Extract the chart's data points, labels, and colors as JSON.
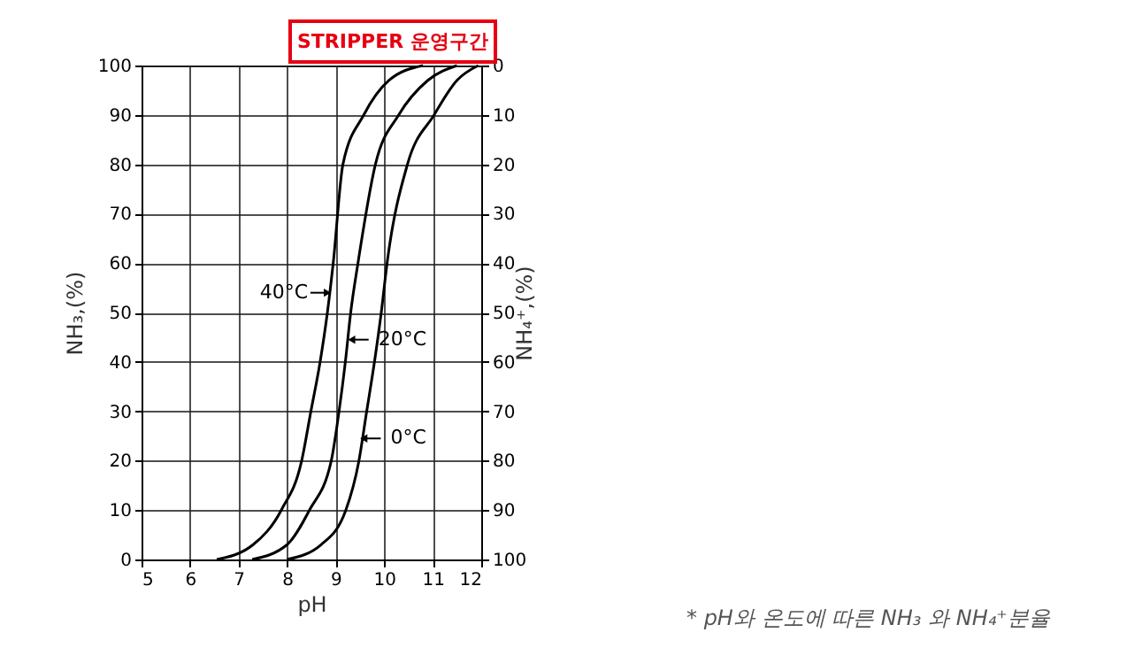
{
  "chart_data": {
    "type": "line",
    "xlabel": "pH",
    "ylabel": "NH₃,(%)",
    "y2label": "NH₄⁺,(%)",
    "xlim": [
      5,
      12
    ],
    "xticks": [
      5,
      6,
      7,
      8,
      9,
      10,
      11,
      12
    ],
    "ylim": [
      0,
      100
    ],
    "yticks": [
      0,
      10,
      20,
      30,
      40,
      50,
      60,
      70,
      80,
      90,
      100
    ],
    "y2lim": [
      100,
      0
    ],
    "y2ticks": [
      0,
      10,
      20,
      30,
      40,
      50,
      60,
      70,
      80,
      90,
      100
    ],
    "grid": true,
    "legend": false,
    "marker": "none",
    "line_style": "solid",
    "series": [
      {
        "color": "#000000",
        "x": [
          6.55,
          7.3,
          7.88,
          8.3,
          8.49,
          8.68,
          8.83,
          8.95,
          9.15,
          9.58,
          10.1,
          10.8
        ],
        "values": [
          0,
          3,
          10,
          20,
          30,
          40,
          50,
          60,
          80,
          90,
          97,
          100
        ]
      },
      {
        "color": "#000000",
        "x": [
          7.28,
          8.0,
          8.46,
          8.91,
          9.07,
          9.2,
          9.31,
          9.46,
          9.82,
          10.3,
          10.9,
          11.5
        ],
        "values": [
          0,
          3,
          10,
          20,
          30,
          40,
          50,
          60,
          80,
          90,
          97,
          100
        ]
      },
      {
        "color": "#000000",
        "x": [
          8.0,
          8.7,
          9.21,
          9.48,
          9.64,
          9.8,
          9.94,
          10.06,
          10.48,
          11.03,
          11.5,
          11.94
        ],
        "values": [
          0,
          3,
          10,
          20,
          30,
          40,
          50,
          60,
          80,
          90,
          97,
          100
        ]
      }
    ],
    "annotations": [
      {
        "text": "40°C",
        "x": 8.83,
        "y": 54
      },
      {
        "text": "20°C",
        "x": 9.33,
        "y": 44.5
      },
      {
        "text": "0°C",
        "x": 9.58,
        "y": 24.5
      },
      "STRIPPER 운영구간",
      "* pH와 온도에 따른 NH₃ 와 NH₄⁺분율"
    ]
  }
}
